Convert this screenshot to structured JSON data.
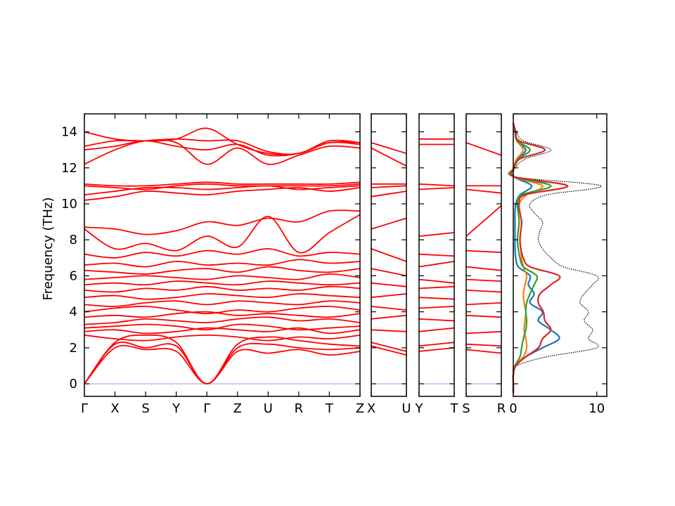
{
  "chart_data": {
    "type": "line",
    "ylabel": "Frequency (THz)",
    "ylim": [
      -0.7,
      15
    ],
    "y_ticks": [
      0,
      2,
      4,
      6,
      8,
      10,
      12,
      14
    ],
    "grid": false,
    "colors": {
      "bands": "#ff0000",
      "zero": "#0000ff",
      "dos_total": "#000000",
      "dos_blue": "#1f77b4",
      "dos_orange": "#ff7f0e",
      "dos_green": "#2ca02c",
      "dos_red": "#d62728"
    },
    "band_panels": [
      {
        "labels": [
          "Γ",
          "X",
          "S",
          "Y",
          "Γ",
          "Z",
          "U",
          "R",
          "T",
          "Z"
        ],
        "bands": [
          [
            0,
            2.3,
            2.7,
            2.3,
            0,
            2.2,
            2.6,
            2.4,
            2.2,
            2.1
          ],
          [
            0,
            2.2,
            2.0,
            2.1,
            0,
            2.0,
            2.2,
            2.0,
            1.9,
            2.0
          ],
          [
            0,
            2.0,
            1.9,
            1.8,
            0,
            1.8,
            1.7,
            1.9,
            1.6,
            1.8
          ],
          [
            2.7,
            2.5,
            2.4,
            2.6,
            2.7,
            2.6,
            2.4,
            2.6,
            2.5,
            2.7
          ],
          [
            2.9,
            3.0,
            2.8,
            2.9,
            3.1,
            3.0,
            2.9,
            3.1,
            2.8,
            3.0
          ],
          [
            3.1,
            3.2,
            3.3,
            3.2,
            3.0,
            3.3,
            3.2,
            3.0,
            3.1,
            3.2
          ],
          [
            3.3,
            3.4,
            3.6,
            3.5,
            3.4,
            3.6,
            3.7,
            3.5,
            3.6,
            3.4
          ],
          [
            3.7,
            3.8,
            3.7,
            3.9,
            4.0,
            3.8,
            3.9,
            3.8,
            3.7,
            3.9
          ],
          [
            4.0,
            4.2,
            4.3,
            4.1,
            3.9,
            4.1,
            4.0,
            4.2,
            4.3,
            4.1
          ],
          [
            4.4,
            4.3,
            4.5,
            4.6,
            4.4,
            4.6,
            4.5,
            4.4,
            4.6,
            4.5
          ],
          [
            4.8,
            4.9,
            4.7,
            4.8,
            5.0,
            4.9,
            4.8,
            5.0,
            4.9,
            4.8
          ],
          [
            5.2,
            5.1,
            5.3,
            5.2,
            5.4,
            5.2,
            5.3,
            5.2,
            5.4,
            5.3
          ],
          [
            5.5,
            5.6,
            5.5,
            5.7,
            5.6,
            5.5,
            5.7,
            5.6,
            5.5,
            5.6
          ],
          [
            5.8,
            5.9,
            6.0,
            5.9,
            5.8,
            6.0,
            5.9,
            5.8,
            6.1,
            5.9
          ],
          [
            6.3,
            6.2,
            6.1,
            6.3,
            6.4,
            6.2,
            6.5,
            6.3,
            6.2,
            6.4
          ],
          [
            6.6,
            6.7,
            6.5,
            6.8,
            6.6,
            6.7,
            6.6,
            6.9,
            6.7,
            6.8
          ],
          [
            7.2,
            7.0,
            7.3,
            7.1,
            7.4,
            7.2,
            7.5,
            7.1,
            7.3,
            7.2
          ],
          [
            8.6,
            7.5,
            7.8,
            7.4,
            8.2,
            7.6,
            9.3,
            7.3,
            8.4,
            9.4
          ],
          [
            8.7,
            8.6,
            8.3,
            8.5,
            9.0,
            8.8,
            9.2,
            9.0,
            9.6,
            9.6
          ],
          [
            10.2,
            10.4,
            10.7,
            10.6,
            10.5,
            10.7,
            10.8,
            10.9,
            10.7,
            10.9
          ],
          [
            10.5,
            10.7,
            10.9,
            10.9,
            10.8,
            10.9,
            11.0,
            10.8,
            10.9,
            11.0
          ],
          [
            11.0,
            10.9,
            10.8,
            11.0,
            11.1,
            11.0,
            11.0,
            11.0,
            11.0,
            11.1
          ],
          [
            11.1,
            11.0,
            11.0,
            11.1,
            11.2,
            11.1,
            11.1,
            11.1,
            11.1,
            11.2
          ],
          [
            12.2,
            13.0,
            13.5,
            13.4,
            12.2,
            13.1,
            12.2,
            12.7,
            13.2,
            13.1
          ],
          [
            13.0,
            13.2,
            13.5,
            13.2,
            13.0,
            13.3,
            12.7,
            12.8,
            13.4,
            13.3
          ],
          [
            13.2,
            13.5,
            13.5,
            13.6,
            13.5,
            13.5,
            12.9,
            12.8,
            13.5,
            13.4
          ],
          [
            14.0,
            13.6,
            13.5,
            13.6,
            14.2,
            13.3,
            12.8,
            12.8,
            13.4,
            13.4
          ]
        ]
      },
      {
        "labels": [
          "X",
          "U"
        ],
        "bands": [
          [
            2.1,
            1.6
          ],
          [
            2.3,
            1.8
          ],
          [
            3.0,
            2.9
          ],
          [
            3.6,
            3.8
          ],
          [
            4.3,
            4.1
          ],
          [
            4.8,
            5.0
          ],
          [
            5.6,
            5.4
          ],
          [
            6.4,
            6.0
          ],
          [
            7.5,
            6.8
          ],
          [
            8.6,
            9.2
          ],
          [
            10.4,
            10.7
          ],
          [
            10.9,
            11.0
          ],
          [
            11.1,
            11.1
          ],
          [
            13.1,
            12.1
          ],
          [
            13.4,
            12.8
          ]
        ]
      },
      {
        "labels": [
          "Y",
          "T"
        ],
        "bands": [
          [
            1.8,
            2.0
          ],
          [
            2.1,
            2.3
          ],
          [
            2.9,
            3.1
          ],
          [
            3.6,
            3.5
          ],
          [
            4.2,
            4.3
          ],
          [
            4.8,
            4.7
          ],
          [
            5.3,
            5.4
          ],
          [
            5.8,
            5.6
          ],
          [
            6.5,
            6.8
          ],
          [
            7.2,
            7.1
          ],
          [
            8.2,
            8.4
          ],
          [
            10.8,
            10.9
          ],
          [
            11.1,
            11.0
          ],
          [
            13.3,
            13.3
          ],
          [
            13.6,
            13.6
          ]
        ]
      },
      {
        "labels": [
          "S",
          "R"
        ],
        "bands": [
          [
            1.9,
            1.7
          ],
          [
            2.2,
            2.1
          ],
          [
            2.8,
            2.9
          ],
          [
            3.8,
            3.7
          ],
          [
            4.4,
            4.5
          ],
          [
            5.2,
            5.1
          ],
          [
            5.8,
            5.7
          ],
          [
            6.5,
            6.3
          ],
          [
            7.4,
            7.3
          ],
          [
            8.2,
            9.9
          ],
          [
            10.8,
            10.6
          ],
          [
            11.0,
            11.0
          ],
          [
            13.4,
            12.7
          ]
        ]
      }
    ],
    "dos": {
      "xlim": [
        0,
        11.2
      ],
      "x_ticks": [
        0,
        10
      ],
      "freq": [
        -0.5,
        0.0,
        0.5,
        1.0,
        1.5,
        2.0,
        2.5,
        3.0,
        3.5,
        4.0,
        4.5,
        5.0,
        5.5,
        6.0,
        6.5,
        7.0,
        7.5,
        8.0,
        8.5,
        9.0,
        9.5,
        10.0,
        10.5,
        11.0,
        11.5,
        12.0,
        12.5,
        13.0,
        13.5,
        14.0,
        14.5
      ],
      "series": [
        {
          "color_key": "dos_total",
          "style": "dotted",
          "values": [
            0,
            0,
            0,
            0.4,
            4,
            10,
            9,
            9.5,
            8.5,
            9,
            8,
            8.5,
            9.5,
            10,
            6,
            4.5,
            3.5,
            3,
            3.2,
            3.5,
            2.5,
            2,
            4,
            10.5,
            0.2,
            0.2,
            1.5,
            4.5,
            1.2,
            0.4,
            0
          ]
        },
        {
          "color_key": "dos_blue",
          "style": "solid",
          "values": [
            0,
            0,
            0,
            0.2,
            1.5,
            3.5,
            5.5,
            4.5,
            3,
            3.5,
            2,
            2.5,
            1.8,
            2,
            0.6,
            0.3,
            0.2,
            0.2,
            0.2,
            0.2,
            0.2,
            0.3,
            0.8,
            2.2,
            0.1,
            0.1,
            0.6,
            1.5,
            0.5,
            0.2,
            0
          ]
        },
        {
          "color_key": "dos_orange",
          "style": "solid",
          "values": [
            0,
            0,
            0,
            0.2,
            1.2,
            1.6,
            1.5,
            1.3,
            1.4,
            1.5,
            1.3,
            1.2,
            1.4,
            1.6,
            1.2,
            1.0,
            0.9,
            0.8,
            0.9,
            1.0,
            0.8,
            0.7,
            1.6,
            3.5,
            0.1,
            0.1,
            0.4,
            1.2,
            0.4,
            0.2,
            0
          ]
        },
        {
          "color_key": "dos_green",
          "style": "solid",
          "values": [
            0,
            0,
            0,
            0.2,
            0.8,
            1.0,
            1.2,
            1.5,
            1.6,
            1.5,
            1.6,
            2.0,
            2.5,
            2.8,
            1.2,
            0.8,
            0.6,
            0.5,
            0.6,
            0.7,
            0.6,
            0.5,
            1.0,
            4.5,
            0.1,
            0.1,
            0.7,
            2.0,
            0.5,
            0.2,
            0
          ]
        },
        {
          "color_key": "dos_red",
          "style": "solid",
          "values": [
            0,
            0,
            0,
            0.3,
            1.5,
            3.0,
            3.5,
            4.5,
            3.8,
            3.6,
            3.0,
            3.2,
            4.5,
            5.5,
            2.0,
            1.2,
            0.9,
            0.8,
            0.9,
            1.0,
            0.8,
            0.7,
            1.4,
            6.5,
            0.1,
            0.1,
            0.8,
            3.8,
            0.7,
            0.3,
            0
          ]
        }
      ]
    }
  }
}
